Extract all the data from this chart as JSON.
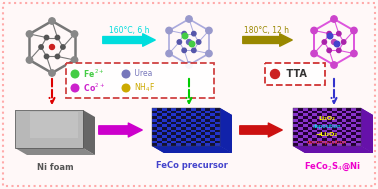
{
  "bg_color": "#fff8f8",
  "border_color": "#ffaaaa",
  "title_fecos": "FeCo$_2$S$_4$@Ni",
  "title_feco": "FeCo precursor",
  "title_ni": "Ni foam",
  "label_160": "160°C, 6 h",
  "label_180": "180°C, 12 h",
  "label_tta": " TTA",
  "label_fe": " Fe$^{2+}$",
  "label_co": " Co$^{2+}$",
  "label_urea": " Urea",
  "label_nh4f": " NH$_4$F",
  "arrow1_color": "#00dddd",
  "arrow2_color": "#998800",
  "arrow3_color": "#cc00cc",
  "arrow4_color": "#cc1111",
  "arrow_down1_color": "#dd0000",
  "arrow_down2_color": "#00cc00",
  "arrow_down3_color": "#3333cc",
  "fe_color": "#44cc44",
  "co_color": "#cc22cc",
  "urea_color": "#7777bb",
  "nh4f_color": "#ccaa00",
  "tta_dot_color": "#cc2222",
  "tta_border": "#cc2222",
  "mol1_bond": "#777777",
  "mol1_atom": "#888888",
  "mol1_center": "#cc2222",
  "mol2_bond": "#aaaadd",
  "mol2_atom": "#9999cc",
  "mol2_inner": "#5555aa",
  "mol2_green": "#44cc44",
  "mol3_bond": "#dd55dd",
  "mol3_atom": "#cc44cc",
  "mol3_inner": "#aa22aa",
  "mol3_blue": "#4444cc",
  "slab_blue1": "#2233cc",
  "slab_blue2": "#111133",
  "slab_blue_side": "#1122aa",
  "slab_purple1": "#8833cc",
  "slab_purple2": "#220033",
  "slab_purple_side": "#6611aa",
  "ni_top": "#b8b8b8",
  "ni_side": "#888888",
  "ni_dark": "#666666"
}
